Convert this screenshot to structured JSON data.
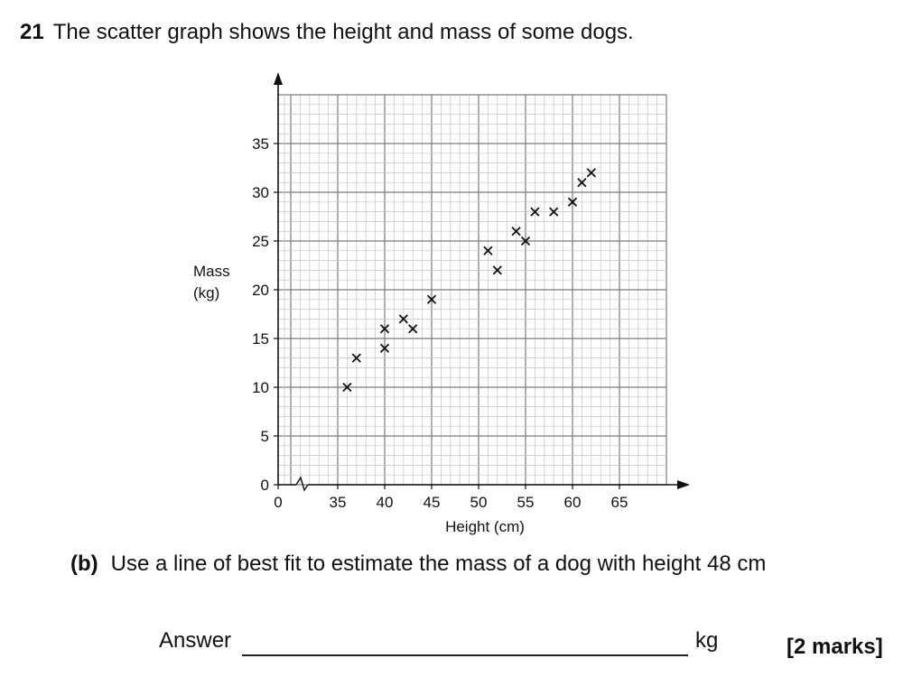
{
  "question": {
    "number": "21",
    "text": "The scatter graph shows the height and mass of some dogs."
  },
  "part_b": {
    "label": "(b)",
    "text": "Use a line of best fit to estimate the mass of a dog with height 48 cm"
  },
  "answer": {
    "label": "Answer",
    "unit": "kg",
    "marks": "[2 marks]"
  },
  "chart_data": {
    "type": "scatter",
    "xlabel": "Height (cm)",
    "ylabel": [
      "Mass",
      "(kg)"
    ],
    "xlim": [
      30,
      70
    ],
    "ylim": [
      0,
      40
    ],
    "x_ticks": [
      0,
      35,
      40,
      45,
      50,
      55,
      60,
      65
    ],
    "y_ticks": [
      0,
      5,
      10,
      15,
      20,
      25,
      30,
      35
    ],
    "axis_break": "x",
    "grid": true,
    "marker": "x",
    "points": [
      {
        "x": 36,
        "y": 10
      },
      {
        "x": 37,
        "y": 13
      },
      {
        "x": 40,
        "y": 14
      },
      {
        "x": 40,
        "y": 16
      },
      {
        "x": 42,
        "y": 17
      },
      {
        "x": 43,
        "y": 16
      },
      {
        "x": 45,
        "y": 19
      },
      {
        "x": 51,
        "y": 24
      },
      {
        "x": 52,
        "y": 22
      },
      {
        "x": 54,
        "y": 26
      },
      {
        "x": 55,
        "y": 25
      },
      {
        "x": 56,
        "y": 28
      },
      {
        "x": 58,
        "y": 28
      },
      {
        "x": 60,
        "y": 29
      },
      {
        "x": 61,
        "y": 31
      },
      {
        "x": 62,
        "y": 32
      }
    ]
  }
}
